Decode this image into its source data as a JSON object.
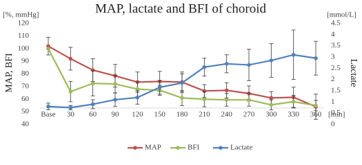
{
  "chart_data": {
    "type": "line",
    "title": "MAP, lactate and BFI of choroid",
    "y_label": "MAP, BFI",
    "y2_label": "Lactate",
    "y_unit": "[%, mmHg]",
    "y2_unit": "[mmol/L]",
    "x_unit": "[min]",
    "categories": [
      "Base",
      "30",
      "60",
      "90",
      "120",
      "150",
      "180",
      "210",
      "240",
      "270",
      "300",
      "330",
      "360"
    ],
    "ylim": [
      40,
      120
    ],
    "yticks": [
      40,
      50,
      60,
      70,
      80,
      90,
      100,
      110,
      120
    ],
    "y2lim": [
      0,
      4.5
    ],
    "y2ticks": [
      0,
      0.5,
      1,
      1.5,
      2,
      2.5,
      3,
      3.5,
      4,
      4.5
    ],
    "legend": "bottom",
    "series": [
      {
        "name": "MAP",
        "color": "#c0504d",
        "values": [
          102,
          92,
          83,
          78.5,
          73.5,
          74,
          73.5,
          66.5,
          67,
          64.5,
          61,
          61.5,
          54
        ],
        "errors": [
          7,
          9,
          9,
          9,
          8,
          8,
          8,
          5,
          6,
          6,
          5,
          8,
          10
        ]
      },
      {
        "name": "BFI",
        "color": "#9bbb59",
        "values": [
          100,
          66,
          72.5,
          72,
          68,
          67,
          61,
          60,
          59.5,
          59.5,
          55.5,
          58,
          55
        ],
        "errors": [
          0,
          8,
          10,
          7,
          6,
          4,
          6,
          6,
          5,
          5,
          4,
          5,
          4
        ]
      },
      {
        "name": "Lactate",
        "color": "#4f81bd",
        "axis": "y2",
        "values": [
          0.8,
          0.75,
          0.9,
          1.1,
          1.2,
          1.65,
          1.85,
          2.55,
          2.7,
          2.65,
          2.85,
          3.1,
          2.95
        ],
        "errors": [
          0.15,
          0.1,
          0.2,
          0.3,
          0.3,
          0.3,
          0.4,
          0.4,
          0.4,
          0.7,
          0.75,
          1.1,
          0.75
        ]
      }
    ]
  }
}
